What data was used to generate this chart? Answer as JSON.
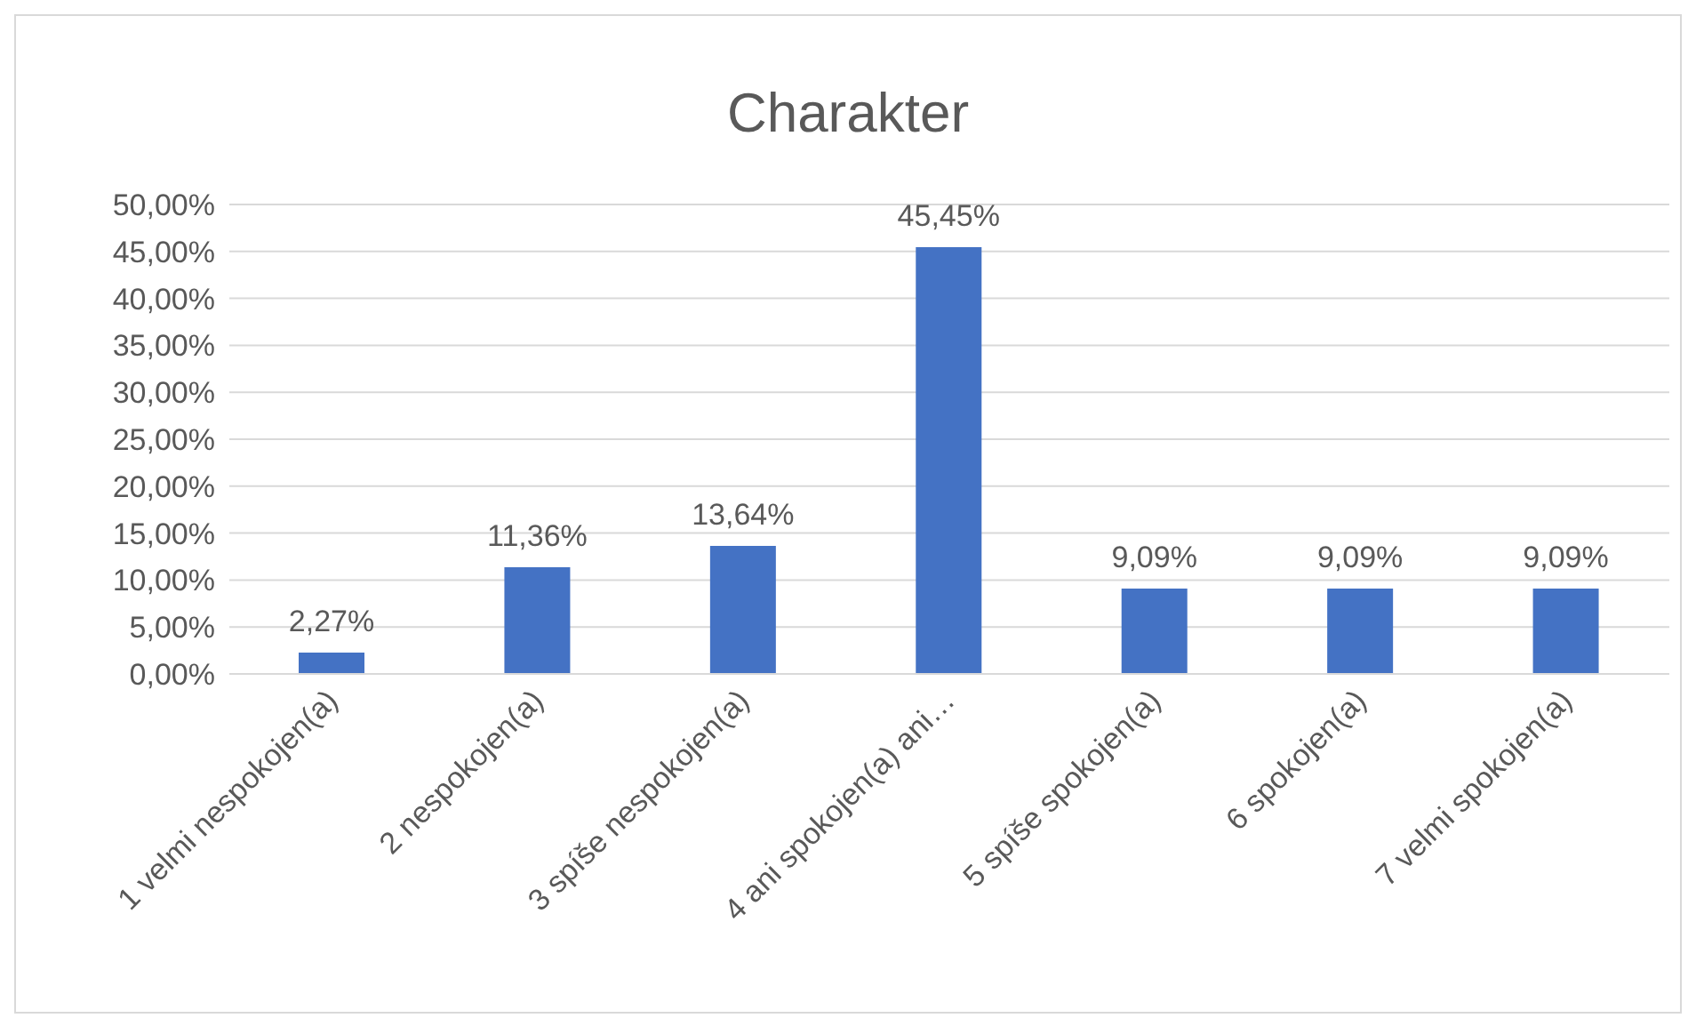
{
  "chart_data": {
    "type": "bar",
    "title": "Charakter",
    "categories": [
      "1 velmi nespokojen(a)",
      "2 nespokojen(a)",
      "3 spíše nespokojen(a)",
      "4 ani spokojen(a) ani…",
      "5 spíše spokojen(a)",
      "6 spokojen(a)",
      "7 velmi spokojen(a)"
    ],
    "values": [
      2.27,
      11.36,
      13.64,
      45.45,
      9.09,
      9.09,
      9.09
    ],
    "value_labels": [
      "2,27%",
      "11,36%",
      "13,64%",
      "45,45%",
      "9,09%",
      "9,09%",
      "9,09%"
    ],
    "color": "#4472c4",
    "ylim": [
      0,
      50
    ],
    "yticks": [
      {
        "value": 0,
        "label": "0,00%"
      },
      {
        "value": 5,
        "label": "5,00%"
      },
      {
        "value": 10,
        "label": "10,00%"
      },
      {
        "value": 15,
        "label": "15,00%"
      },
      {
        "value": 20,
        "label": "20,00%"
      },
      {
        "value": 25,
        "label": "25,00%"
      },
      {
        "value": 30,
        "label": "30,00%"
      },
      {
        "value": 35,
        "label": "35,00%"
      },
      {
        "value": 40,
        "label": "40,00%"
      },
      {
        "value": 45,
        "label": "45,00%"
      },
      {
        "value": 50,
        "label": "50,00%"
      }
    ],
    "grid": "y",
    "legend": false
  }
}
